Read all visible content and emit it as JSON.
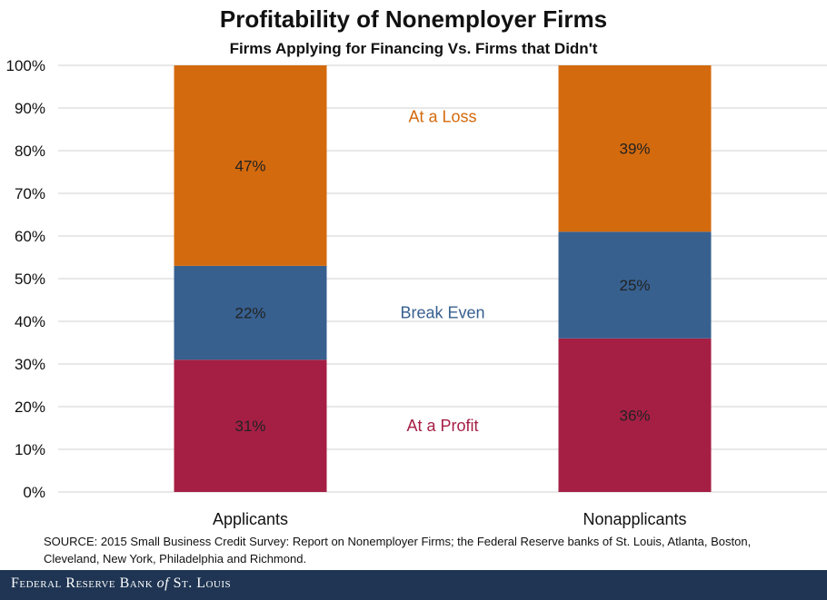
{
  "chart_data": {
    "type": "bar",
    "stacked": true,
    "title": "Profitability of Nonemployer Firms",
    "subtitle": "Firms Applying for Financing Vs. Firms that Didn't",
    "categories": [
      "Applicants",
      "Nonapplicants"
    ],
    "series": [
      {
        "name": "At a Profit",
        "values": [
          31,
          36
        ],
        "labels": [
          "31%",
          "36%"
        ],
        "color": "#a51f45"
      },
      {
        "name": "Break Even",
        "values": [
          22,
          25
        ],
        "labels": [
          "22%",
          "25%"
        ],
        "color": "#37608f"
      },
      {
        "name": "At a Loss",
        "values": [
          47,
          39
        ],
        "labels": [
          "47%",
          "39%"
        ],
        "color": "#d46a0e"
      }
    ],
    "ylim": [
      0,
      100
    ],
    "yticks": [
      "0%",
      "10%",
      "20%",
      "30%",
      "40%",
      "50%",
      "60%",
      "70%",
      "80%",
      "90%",
      "100%"
    ],
    "grid": true,
    "legend": "inline-between-bars"
  },
  "source": "SOURCE: 2015 Small Business Credit Survey: Report on Nonemployer Firms; the Federal Reserve banks of St. Louis, Atlanta, Boston, Cleveland, New York, Philadelphia and Richmond.",
  "footer": {
    "brand": "Federal Reserve Bank",
    "of": "of",
    "city": "St. Louis"
  },
  "colors": {
    "footer_bg": "#1f3553",
    "grid": "#d0d0d0"
  }
}
